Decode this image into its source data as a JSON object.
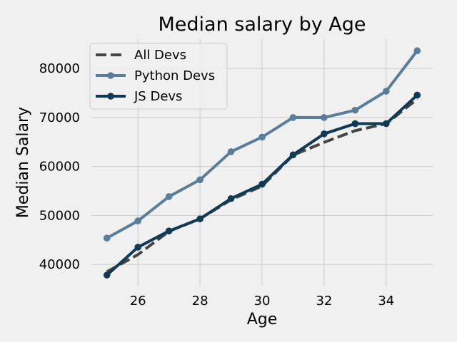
{
  "chart_data": {
    "type": "line",
    "title": "Median salary by Age",
    "xlabel": "Age",
    "ylabel": "Median Salary",
    "x": [
      25,
      26,
      27,
      28,
      29,
      30,
      31,
      32,
      33,
      34,
      35
    ],
    "xlim": [
      24.5,
      35.5
    ],
    "ylim": [
      35500,
      86000
    ],
    "xticks": [
      26,
      28,
      30,
      32,
      34
    ],
    "yticks": [
      40000,
      50000,
      60000,
      70000,
      80000
    ],
    "grid": true,
    "legend_position": "top-left",
    "series": [
      {
        "name": "All Devs",
        "color": "#444444",
        "style": "dashed",
        "marker": false,
        "values": [
          38496,
          42000,
          46752,
          49320,
          53200,
          56000,
          62316,
          64928,
          67317,
          68748,
          73752
        ]
      },
      {
        "name": "Python Devs",
        "color": "#5a7d9a",
        "style": "solid",
        "marker": true,
        "values": [
          45372,
          48876,
          53850,
          57287,
          63016,
          65998,
          70003,
          70000,
          71496,
          75370,
          83640
        ]
      },
      {
        "name": "JS Devs",
        "color": "#0f3a57",
        "style": "solid",
        "marker": true,
        "values": [
          37810,
          43515,
          46823,
          49293,
          53437,
          56373,
          62375,
          66674,
          68745,
          68746,
          74583
        ]
      }
    ]
  }
}
